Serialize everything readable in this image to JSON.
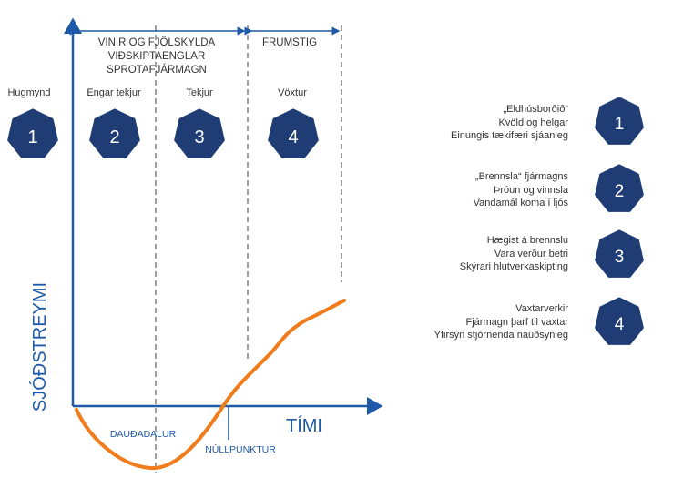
{
  "phase_headers": {
    "top_left": [
      "VINIR OG FJÖLSKYLDA",
      "VIÐSKIPTAENGLAR",
      "SPROTAFJÁRMAGN"
    ],
    "top_right": "FRUMSTIG"
  },
  "stages": [
    {
      "label": "Hugmynd",
      "number": "1"
    },
    {
      "label": "Engar tekjur",
      "number": "2"
    },
    {
      "label": "Tekjur",
      "number": "3"
    },
    {
      "label": "Vöxtur",
      "number": "4"
    }
  ],
  "axes": {
    "y_label": "SJÓÐSTREYMI",
    "x_label": "TÍMI"
  },
  "annotations": {
    "valley": "DAUÐADALUR",
    "breakeven": "NÚLLPUNKTUR"
  },
  "legend": [
    {
      "number": "1",
      "lines": [
        "„Eldhúsborðið“",
        "Kvöld og helgar",
        "Einungis tækifæri sjáanleg"
      ]
    },
    {
      "number": "2",
      "lines": [
        "„Brennsla“ fjármagns",
        "Þróun og vinnsla",
        "Vandamál koma í ljós"
      ]
    },
    {
      "number": "3",
      "lines": [
        "Hægist á brennslu",
        "Vara verður betri",
        "Skýrari hlutverkaskipting"
      ]
    },
    {
      "number": "4",
      "lines": [
        "Vaxtarverkir",
        "Fjármagn þarf til vaxtar",
        "Yfirsýn stjórnenda nauðsynleg"
      ]
    }
  ],
  "colors": {
    "axis": "#1f5aa8",
    "badge": "#1f3c74",
    "curve": "#f07c1c",
    "divider": "#888888"
  }
}
